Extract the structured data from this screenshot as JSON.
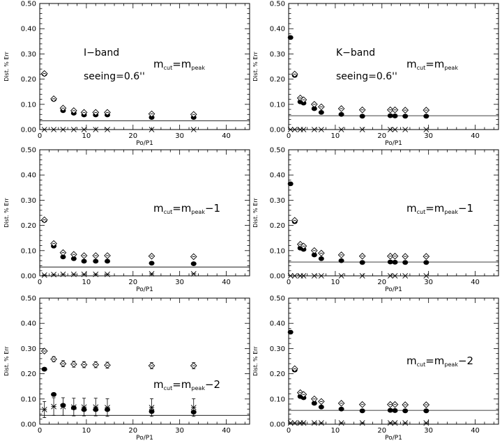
{
  "figure": {
    "layout": "3 rows x 2 columns"
  },
  "chart_data": [
    {
      "type": "scatter",
      "panel": "I-band, mcut = mpeak",
      "band_label": "I−band",
      "seeing_label": "seeing=0.6''",
      "mcut_label": {
        "pre": "m",
        "sub1": "cut",
        "mid": "=m",
        "sub2": "peak",
        "post": ""
      },
      "xlabel": "Po/P1",
      "ylabel": "Dist. % Err",
      "xlim": [
        0,
        45
      ],
      "ylim": [
        0,
        0.5
      ],
      "xticks": [
        "0",
        "10",
        "20",
        "30",
        "40"
      ],
      "yticks": [
        "0.00",
        "0.10",
        "0.20",
        "0.30",
        "0.40",
        "0.50"
      ],
      "reference_line": 0.035,
      "series": [
        {
          "marker": "filled-circle",
          "points": [
            [
              1,
              0.22
            ],
            [
              3,
              0.12
            ],
            [
              5,
              0.075
            ],
            [
              7.3,
              0.065
            ],
            [
              9.5,
              0.058
            ],
            [
              12,
              0.058
            ],
            [
              14.5,
              0.058
            ],
            [
              24,
              0.048
            ],
            [
              33,
              0.048
            ]
          ]
        },
        {
          "marker": "open-diamond",
          "points": [
            [
              1,
              0.222
            ],
            [
              3,
              0.122
            ],
            [
              5,
              0.085
            ],
            [
              7.3,
              0.075
            ],
            [
              9.5,
              0.068
            ],
            [
              12,
              0.068
            ],
            [
              14.5,
              0.068
            ],
            [
              24,
              0.062
            ],
            [
              33,
              0.06
            ]
          ]
        },
        {
          "marker": "asterisk",
          "points": [
            [
              1,
              0.0
            ],
            [
              3,
              0.0
            ],
            [
              5,
              0.0
            ],
            [
              7.3,
              0.0
            ],
            [
              9.5,
              0.0
            ],
            [
              12,
              0.0
            ],
            [
              14.5,
              0.0
            ],
            [
              24,
              0.0
            ],
            [
              33,
              0.0
            ]
          ]
        }
      ]
    },
    {
      "type": "scatter",
      "panel": "K-band, mcut = mpeak",
      "band_label": "K−band",
      "seeing_label": "seeing=0.6''",
      "mcut_label": {
        "pre": "m",
        "sub1": "cut",
        "mid": "=m",
        "sub2": "peak",
        "post": ""
      },
      "xlabel": "Po/P1",
      "ylabel": "Dist. % Err",
      "xlim": [
        0,
        45
      ],
      "ylim": [
        0,
        0.5
      ],
      "xticks": [
        "0",
        "10",
        "20",
        "30",
        "40"
      ],
      "yticks": [
        "0.00",
        "0.10",
        "0.20",
        "0.30",
        "0.40",
        "0.50"
      ],
      "reference_line": 0.055,
      "series": [
        {
          "marker": "filled-circle",
          "points": [
            [
              0.4,
              0.365
            ],
            [
              1.3,
              0.215
            ],
            [
              2.5,
              0.11
            ],
            [
              3.2,
              0.105
            ],
            [
              5.5,
              0.083
            ],
            [
              7,
              0.068
            ],
            [
              11.3,
              0.06
            ],
            [
              15.8,
              0.053
            ],
            [
              21.8,
              0.055
            ],
            [
              22.8,
              0.054
            ],
            [
              25,
              0.053
            ],
            [
              29.5,
              0.053
            ]
          ]
        },
        {
          "marker": "open-diamond",
          "points": [
            [
              1.3,
              0.22
            ],
            [
              2.5,
              0.125
            ],
            [
              3.2,
              0.118
            ],
            [
              5.5,
              0.1
            ],
            [
              7,
              0.09
            ],
            [
              11.3,
              0.083
            ],
            [
              15.8,
              0.078
            ],
            [
              21.8,
              0.078
            ],
            [
              22.8,
              0.078
            ],
            [
              25,
              0.077
            ],
            [
              29.5,
              0.077
            ]
          ]
        },
        {
          "marker": "asterisk",
          "points": [
            [
              0.4,
              0.0
            ],
            [
              1.3,
              0.0
            ],
            [
              2.5,
              0.0
            ],
            [
              3.2,
              0.0
            ],
            [
              5.5,
              0.0
            ],
            [
              7,
              0.0
            ],
            [
              11.3,
              0.0
            ],
            [
              15.8,
              0.0
            ],
            [
              21.8,
              0.0
            ],
            [
              22.8,
              0.0
            ],
            [
              25,
              0.0
            ],
            [
              29.5,
              0.0
            ]
          ]
        }
      ]
    },
    {
      "type": "scatter",
      "panel": "I-band, mcut = mpeak - 1",
      "mcut_label": {
        "pre": "m",
        "sub1": "cut",
        "mid": "=m",
        "sub2": "peak",
        "post": "−1"
      },
      "xlabel": "Po/P1",
      "ylabel": "Dist. % Err",
      "xlim": [
        0,
        45
      ],
      "ylim": [
        0,
        0.5
      ],
      "xticks": [
        "0",
        "10",
        "20",
        "30",
        "40"
      ],
      "yticks": [
        "0.00",
        "0.10",
        "0.20",
        "0.30",
        "0.40",
        "0.50"
      ],
      "reference_line": 0.035,
      "series": [
        {
          "marker": "filled-circle",
          "points": [
            [
              1,
              0.22
            ],
            [
              3,
              0.118
            ],
            [
              5,
              0.075
            ],
            [
              7.3,
              0.068
            ],
            [
              9.5,
              0.058
            ],
            [
              12,
              0.058
            ],
            [
              14.5,
              0.058
            ],
            [
              24,
              0.05
            ],
            [
              33,
              0.048
            ]
          ]
        },
        {
          "marker": "open-diamond",
          "points": [
            [
              1,
              0.222
            ],
            [
              3,
              0.128
            ],
            [
              5,
              0.092
            ],
            [
              7.3,
              0.085
            ],
            [
              9.5,
              0.08
            ],
            [
              12,
              0.08
            ],
            [
              14.5,
              0.08
            ],
            [
              24,
              0.078
            ],
            [
              33,
              0.076
            ]
          ]
        },
        {
          "marker": "asterisk",
          "points": [
            [
              1,
              0.003
            ],
            [
              3,
              0.005
            ],
            [
              5,
              0.006
            ],
            [
              7.3,
              0.006
            ],
            [
              9.5,
              0.006
            ],
            [
              12,
              0.006
            ],
            [
              14.5,
              0.006
            ],
            [
              24,
              0.008
            ],
            [
              33,
              0.008
            ]
          ]
        }
      ]
    },
    {
      "type": "scatter",
      "panel": "K-band, mcut = mpeak - 1",
      "mcut_label": {
        "pre": "m",
        "sub1": "cut",
        "mid": "=m",
        "sub2": "peak",
        "post": "−1"
      },
      "xlabel": "Po/P1",
      "ylabel": "Dist. % Err",
      "xlim": [
        0,
        45
      ],
      "ylim": [
        0,
        0.5
      ],
      "xticks": [
        "0",
        "10",
        "20",
        "30",
        "40"
      ],
      "yticks": [
        "0.00",
        "0.10",
        "0.20",
        "0.30",
        "0.40",
        "0.50"
      ],
      "reference_line": 0.055,
      "series": [
        {
          "marker": "filled-circle",
          "points": [
            [
              0.4,
              0.365
            ],
            [
              1.3,
              0.215
            ],
            [
              2.5,
              0.11
            ],
            [
              3.2,
              0.105
            ],
            [
              5.5,
              0.083
            ],
            [
              7,
              0.068
            ],
            [
              11.3,
              0.06
            ],
            [
              15.8,
              0.053
            ],
            [
              21.8,
              0.055
            ],
            [
              22.8,
              0.054
            ],
            [
              25,
              0.053
            ],
            [
              29.5,
              0.053
            ]
          ]
        },
        {
          "marker": "open-diamond",
          "points": [
            [
              1.3,
              0.22
            ],
            [
              2.5,
              0.125
            ],
            [
              3.2,
              0.118
            ],
            [
              5.5,
              0.1
            ],
            [
              7,
              0.09
            ],
            [
              11.3,
              0.083
            ],
            [
              15.8,
              0.078
            ],
            [
              21.8,
              0.078
            ],
            [
              22.8,
              0.078
            ],
            [
              25,
              0.077
            ],
            [
              29.5,
              0.077
            ]
          ]
        },
        {
          "marker": "asterisk",
          "points": [
            [
              0.4,
              0.0
            ],
            [
              1.3,
              0.0
            ],
            [
              2.5,
              0.0
            ],
            [
              3.2,
              0.0
            ],
            [
              5.5,
              0.0
            ],
            [
              7,
              0.0
            ],
            [
              11.3,
              0.0
            ],
            [
              15.8,
              0.0
            ],
            [
              21.8,
              0.0
            ],
            [
              22.8,
              0.0
            ],
            [
              25,
              0.0
            ],
            [
              29.5,
              0.0
            ]
          ]
        }
      ]
    },
    {
      "type": "scatter",
      "panel": "I-band, mcut = mpeak - 2",
      "mcut_label": {
        "pre": "m",
        "sub1": "cut",
        "mid": "=m",
        "sub2": "peak",
        "post": "−2"
      },
      "xlabel": "Po/P1",
      "ylabel": "Dist. % Err",
      "xlim": [
        0,
        45
      ],
      "ylim": [
        0,
        0.5
      ],
      "xticks": [
        "0",
        "10",
        "20",
        "30",
        "40"
      ],
      "yticks": [
        "0.00",
        "0.10",
        "0.20",
        "0.30",
        "0.40",
        "0.50"
      ],
      "reference_line": 0.035,
      "series": [
        {
          "marker": "filled-circle",
          "points": [
            [
              1,
              0.218
            ],
            [
              3,
              0.118
            ],
            [
              5,
              0.075
            ],
            [
              7.3,
              0.065
            ],
            [
              9.5,
              0.058
            ],
            [
              12,
              0.058
            ],
            [
              14.5,
              0.058
            ],
            [
              24,
              0.05
            ],
            [
              33,
              0.048
            ]
          ]
        },
        {
          "marker": "open-diamond",
          "points": [
            [
              1,
              0.29
            ],
            [
              3,
              0.258
            ],
            [
              5,
              0.24
            ],
            [
              7.3,
              0.238
            ],
            [
              9.5,
              0.236
            ],
            [
              12,
              0.236
            ],
            [
              14.5,
              0.234
            ],
            [
              24,
              0.232
            ],
            [
              33,
              0.232
            ]
          ],
          "errors": [
            0.005,
            0.01,
            0.012,
            0.012,
            0.012,
            0.012,
            0.012,
            0.012,
            0.012
          ]
        },
        {
          "marker": "asterisk",
          "points": [
            [
              1,
              0.058
            ],
            [
              3,
              0.07
            ],
            [
              5,
              0.07
            ],
            [
              7.3,
              0.068
            ],
            [
              9.5,
              0.068
            ],
            [
              12,
              0.068
            ],
            [
              14.5,
              0.066
            ],
            [
              24,
              0.066
            ],
            [
              33,
              0.066
            ]
          ],
          "errors": [
            0.032,
            0.035,
            0.035,
            0.035,
            0.035,
            0.035,
            0.035,
            0.035,
            0.035
          ]
        }
      ]
    },
    {
      "type": "scatter",
      "panel": "K-band, mcut = mpeak - 2",
      "mcut_label": {
        "pre": "m",
        "sub1": "cut",
        "mid": "=m",
        "sub2": "peak",
        "post": "−2"
      },
      "xlabel": "Po/P1",
      "ylabel": "Dist. % Err",
      "xlim": [
        0,
        45
      ],
      "ylim": [
        0,
        0.5
      ],
      "xticks": [
        "0",
        "10",
        "20",
        "30",
        "40"
      ],
      "yticks": [
        "0.00",
        "0.10",
        "0.20",
        "0.30",
        "0.40",
        "0.50"
      ],
      "reference_line": 0.055,
      "series": [
        {
          "marker": "filled-circle",
          "points": [
            [
              0.4,
              0.365
            ],
            [
              1.3,
              0.215
            ],
            [
              2.5,
              0.11
            ],
            [
              3.2,
              0.105
            ],
            [
              5.5,
              0.083
            ],
            [
              7,
              0.068
            ],
            [
              11.3,
              0.06
            ],
            [
              15.8,
              0.053
            ],
            [
              21.8,
              0.055
            ],
            [
              22.8,
              0.054
            ],
            [
              25,
              0.053
            ],
            [
              29.5,
              0.053
            ]
          ]
        },
        {
          "marker": "open-diamond",
          "points": [
            [
              1.3,
              0.22
            ],
            [
              2.5,
              0.125
            ],
            [
              3.2,
              0.118
            ],
            [
              5.5,
              0.1
            ],
            [
              7,
              0.09
            ],
            [
              11.3,
              0.083
            ],
            [
              15.8,
              0.078
            ],
            [
              21.8,
              0.078
            ],
            [
              22.8,
              0.078
            ],
            [
              25,
              0.077
            ],
            [
              29.5,
              0.077
            ]
          ]
        },
        {
          "marker": "asterisk",
          "points": [
            [
              0.4,
              0.005
            ],
            [
              1.3,
              0.005
            ],
            [
              2.5,
              0.005
            ],
            [
              3.2,
              0.005
            ],
            [
              5.5,
              0.005
            ],
            [
              7,
              0.005
            ],
            [
              11.3,
              0.005
            ],
            [
              15.8,
              0.005
            ],
            [
              21.8,
              0.005
            ],
            [
              22.8,
              0.005
            ],
            [
              25,
              0.005
            ],
            [
              29.5,
              0.005
            ]
          ]
        }
      ]
    }
  ]
}
